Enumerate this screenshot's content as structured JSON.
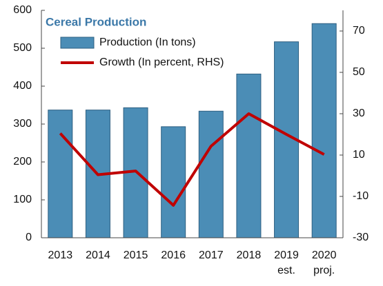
{
  "chart_data": {
    "type": "bar-line",
    "title": "Cereal Production",
    "categories": [
      "2013",
      "2014",
      "2015",
      "2016",
      "2017",
      "2018",
      "2019 est.",
      "2020 proj."
    ],
    "series": [
      {
        "name": "Production (In tons)",
        "type": "bar",
        "color": "#4b8db6",
        "values": [
          337,
          337,
          343,
          293,
          334,
          432,
          517,
          565
        ]
      },
      {
        "name": "Growth (In percent, RHS)",
        "type": "line",
        "axis": "y2",
        "color": "#c00000",
        "values": [
          20.5,
          0.5,
          2.3,
          -14.3,
          14.3,
          30,
          20,
          10.3
        ]
      }
    ],
    "ylim": [
      0,
      600
    ],
    "yticks": [
      0,
      100,
      200,
      300,
      400,
      500,
      600
    ],
    "y2lim": [
      -30,
      80
    ],
    "y2ticks": [
      -30,
      -10,
      10,
      30,
      50,
      70
    ]
  }
}
